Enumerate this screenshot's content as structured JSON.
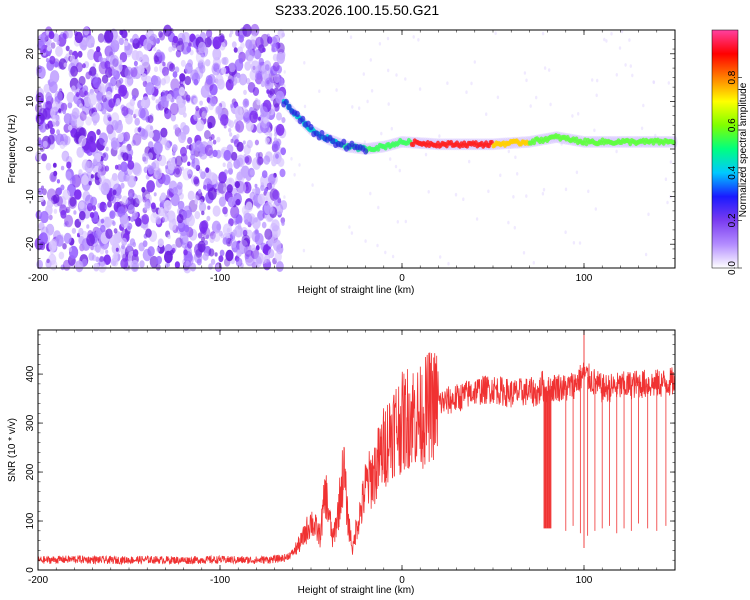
{
  "title": "S233.2026.100.15.50.G21",
  "chart_data": [
    {
      "type": "heatmap",
      "xlabel": "Height of straight line (km)",
      "ylabel": "Frequency (Hz)",
      "xlim": [
        -200,
        150
      ],
      "ylim": [
        -25,
        25
      ],
      "xticks": [
        -200,
        -100,
        0,
        100
      ],
      "yticks": [
        -20,
        -10,
        0,
        10,
        20
      ],
      "colorbar": {
        "label": "Normalized spectral amplitude",
        "range": [
          0,
          1
        ],
        "ticks": [
          "0.0",
          "0.2",
          "0.4",
          "0.6",
          "0.8"
        ],
        "tick_values": [
          0,
          0.2,
          0.4,
          0.6,
          0.8
        ],
        "colors": [
          "#ffffff",
          "#b38cff",
          "#7a3cf0",
          "#1a1aff",
          "#00c8ff",
          "#00ff80",
          "#80ff00",
          "#ffff00",
          "#ff8000",
          "#ff0000",
          "#ff40a0"
        ]
      },
      "noise_region": {
        "x_from": -200,
        "x_to": -65,
        "freq_from": -25,
        "freq_to": 25
      },
      "ridge": [
        {
          "x": -65,
          "freq": 10
        },
        {
          "x": -58,
          "freq": 7
        },
        {
          "x": -50,
          "freq": 4
        },
        {
          "x": -40,
          "freq": 2
        },
        {
          "x": -30,
          "freq": 0.5
        },
        {
          "x": -20,
          "freq": 0
        },
        {
          "x": -10,
          "freq": 0.5
        },
        {
          "x": 0,
          "freq": 1.5
        },
        {
          "x": 20,
          "freq": 1
        },
        {
          "x": 50,
          "freq": 1
        },
        {
          "x": 70,
          "freq": 1.5
        },
        {
          "x": 85,
          "freq": 2.5
        },
        {
          "x": 100,
          "freq": 1.5
        },
        {
          "x": 120,
          "freq": 1.5
        },
        {
          "x": 150,
          "freq": 1.5
        }
      ]
    },
    {
      "type": "line",
      "xlabel": "Height of straight line (km)",
      "ylabel": "SNR (10 * v/v)",
      "xlim": [
        -200,
        150
      ],
      "ylim": [
        0,
        490
      ],
      "xticks": [
        -200,
        -100,
        0,
        100
      ],
      "yticks": [
        0,
        100,
        200,
        300,
        400
      ],
      "color": "#f03232",
      "series": [
        {
          "name": "SNR",
          "x": [
            -200,
            -180,
            -160,
            -140,
            -120,
            -100,
            -80,
            -70,
            -64,
            -60,
            -55,
            -50,
            -45,
            -42,
            -38,
            -35,
            -32,
            -30,
            -27,
            -25,
            -22,
            -20,
            -15,
            -10,
            -5,
            0,
            5,
            10,
            15,
            20,
            25,
            30,
            40,
            50,
            60,
            70,
            75,
            77,
            78,
            80,
            82,
            85,
            90,
            95,
            100,
            110,
            120,
            130,
            140,
            150
          ],
          "y": [
            20,
            22,
            20,
            21,
            20,
            21,
            20,
            22,
            25,
            35,
            60,
            100,
            70,
            160,
            60,
            120,
            210,
            110,
            40,
            90,
            130,
            170,
            200,
            250,
            290,
            300,
            320,
            310,
            335,
            340,
            345,
            350,
            365,
            370,
            360,
            365,
            360,
            380,
            370,
            365,
            370,
            375,
            370,
            380,
            400,
            370,
            375,
            380,
            380,
            385
          ]
        }
      ],
      "dropouts": [
        {
          "x_from": 78,
          "x_to": 82,
          "y": 85
        },
        {
          "x": 90,
          "y": 80
        },
        {
          "x": 94,
          "y": 90
        },
        {
          "x": 98,
          "y": 75
        },
        {
          "x": 102,
          "y": 70
        },
        {
          "x": 106,
          "y": 80
        },
        {
          "x": 110,
          "y": 85
        },
        {
          "x": 114,
          "y": 90
        },
        {
          "x": 118,
          "y": 75
        },
        {
          "x": 122,
          "y": 85
        },
        {
          "x": 126,
          "y": 80
        },
        {
          "x": 130,
          "y": 95
        },
        {
          "x": 135,
          "y": 85
        },
        {
          "x": 140,
          "y": 80
        },
        {
          "x": 145,
          "y": 90
        }
      ],
      "spikes": [
        {
          "x": 100,
          "y": 490
        },
        {
          "x": 100,
          "y": 45
        }
      ]
    }
  ]
}
